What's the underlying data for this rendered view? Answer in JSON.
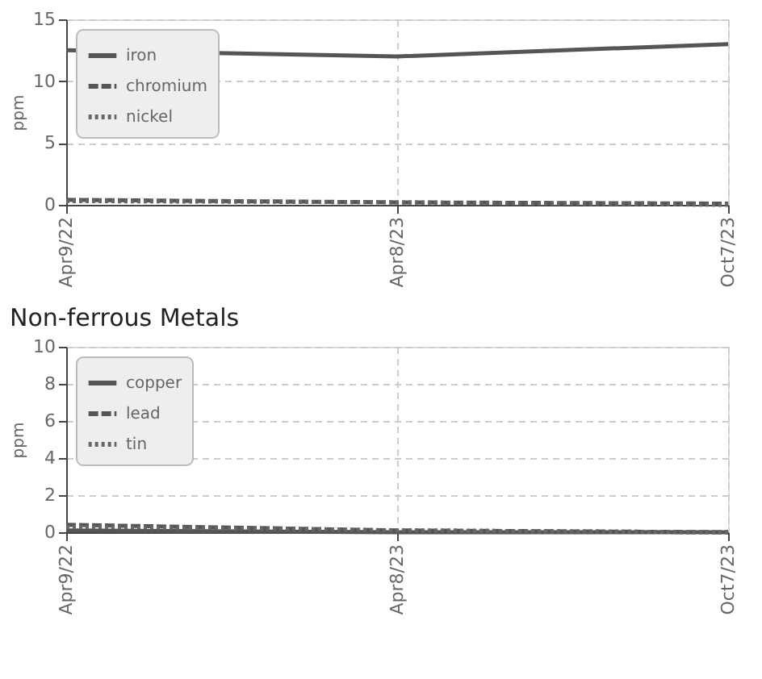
{
  "chart_data": [
    {
      "type": "line",
      "ylabel": "ppm",
      "categories": [
        "Apr9/22",
        "Apr8/23",
        "Oct7/23"
      ],
      "ylim": [
        0,
        15
      ],
      "yticks": [
        0,
        5,
        10,
        15
      ],
      "grid": true,
      "legend": "top left",
      "series": [
        {
          "name": "iron",
          "color": "#555555",
          "line_style": "solid",
          "values": [
            12.5,
            12,
            13
          ]
        },
        {
          "name": "chromium",
          "color": "#555555",
          "line_style": "dashed",
          "values": [
            0.4,
            0.2,
            0.1
          ]
        },
        {
          "name": "nickel",
          "color": "#666666",
          "line_style": "dotted",
          "values": [
            0.3,
            0.2,
            0
          ]
        }
      ]
    },
    {
      "type": "line",
      "title": "Non-ferrous Metals",
      "ylabel": "ppm",
      "categories": [
        "Apr9/22",
        "Apr8/23",
        "Oct7/23"
      ],
      "ylim": [
        0,
        10
      ],
      "yticks": [
        0,
        2,
        4,
        6,
        8,
        10
      ],
      "grid": true,
      "legend": "top left",
      "series": [
        {
          "name": "copper",
          "color": "#555555",
          "line_style": "solid",
          "values": [
            0.1,
            0,
            0
          ]
        },
        {
          "name": "lead",
          "color": "#555555",
          "line_style": "dashed",
          "values": [
            0.4,
            0.1,
            0
          ]
        },
        {
          "name": "tin",
          "color": "#666666",
          "line_style": "dotted",
          "values": [
            0.3,
            0.1,
            0
          ]
        }
      ]
    }
  ]
}
